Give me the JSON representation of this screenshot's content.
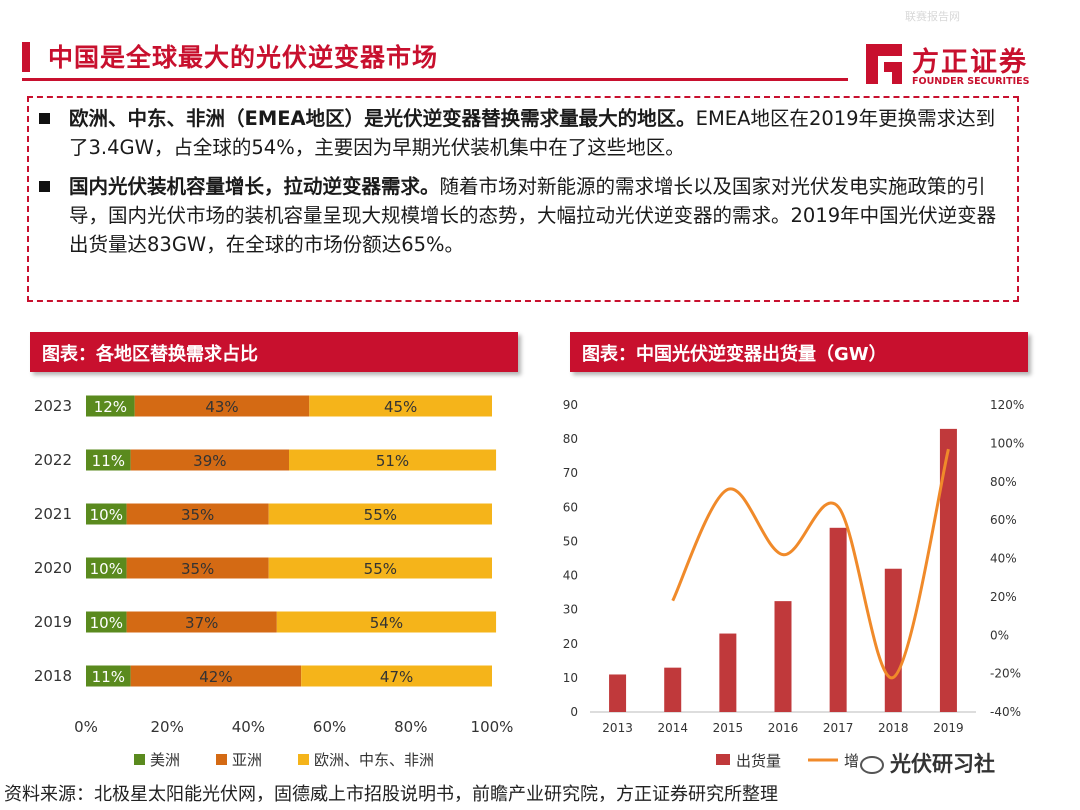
{
  "watermark": "联赛报告网",
  "title": "中国是全球最大的光伏逆变器市场",
  "logo": {
    "cn": "方正证券",
    "en": "FOUNDER SECURITIES"
  },
  "paragraphs": [
    {
      "bold": "欧洲、中东、非洲（EMEA地区）是光伏逆变器替换需求量最大的地区。",
      "text": "EMEA地区在2019年更换需求达到了3.4GW，占全球的54%，主要因为早期光伏装机集中在了这些地区。"
    },
    {
      "bold": "国内光伏装机容量增长，拉动逆变器需求。",
      "text": "随着市场对新能源的需求增长以及国家对光伏发电实施政策的引导，国内光伏市场的装机容量呈现大规模增长的态势，大幅拉动光伏逆变器的需求。2019年中国光伏逆变器出货量达83GW，在全球的市场份额达65%。"
    }
  ],
  "chart_data": [
    {
      "type": "bar",
      "orientation": "horizontal-stacked",
      "title": "图表：各地区替换需求占比",
      "categories": [
        "2023",
        "2022",
        "2021",
        "2020",
        "2019",
        "2018"
      ],
      "series": [
        {
          "name": "美洲",
          "color": "#5a8a1e",
          "values": [
            12,
            11,
            10,
            10,
            10,
            11
          ],
          "labels": [
            "12%",
            "11%",
            "10%",
            "10%",
            "10%",
            "11%"
          ]
        },
        {
          "name": "亚洲",
          "color": "#d46a14",
          "values": [
            43,
            39,
            35,
            35,
            37,
            42
          ],
          "labels": [
            "43%",
            "39%",
            "35%",
            "35%",
            "37%",
            "42%"
          ]
        },
        {
          "name": "欧洲、中东、非洲",
          "color": "#f5b41a",
          "values": [
            45,
            51,
            55,
            55,
            54,
            47
          ],
          "labels": [
            "45%",
            "51%",
            "55%",
            "55%",
            "54%",
            "47%"
          ]
        }
      ],
      "xlim": [
        0,
        100
      ],
      "xticks": [
        "0%",
        "20%",
        "40%",
        "60%",
        "80%",
        "100%"
      ]
    },
    {
      "type": "bar",
      "combo": "bar+line",
      "title": "图表：中国光伏逆变器出货量（GW）",
      "categories": [
        "2013",
        "2014",
        "2015",
        "2016",
        "2017",
        "2018",
        "2019"
      ],
      "series": [
        {
          "name": "出货量",
          "kind": "bar",
          "axis": "left",
          "color": "#c0393b",
          "values": [
            11,
            13,
            23,
            32.5,
            54,
            42,
            83
          ]
        },
        {
          "name": "增速",
          "kind": "line",
          "axis": "right",
          "color": "#f08a2a",
          "values": [
            null,
            18,
            76,
            42,
            67,
            -22,
            97
          ]
        }
      ],
      "ylim_left": [
        0,
        90
      ],
      "yticks_left": [
        "0",
        "10",
        "20",
        "30",
        "40",
        "50",
        "60",
        "70",
        "80",
        "90"
      ],
      "ylim_right": [
        -40,
        120
      ],
      "yticks_right": [
        "-40%",
        "-20%",
        "0%",
        "20%",
        "40%",
        "60%",
        "80%",
        "100%",
        "120%"
      ],
      "legend": [
        "出货量",
        "增"
      ]
    }
  ],
  "footer": "资料来源：北极星太阳能光伏网，固德威上市招股说明书，前瞻产业研究院，方正证券研究所整理",
  "brand_mark": "光伏研习社"
}
